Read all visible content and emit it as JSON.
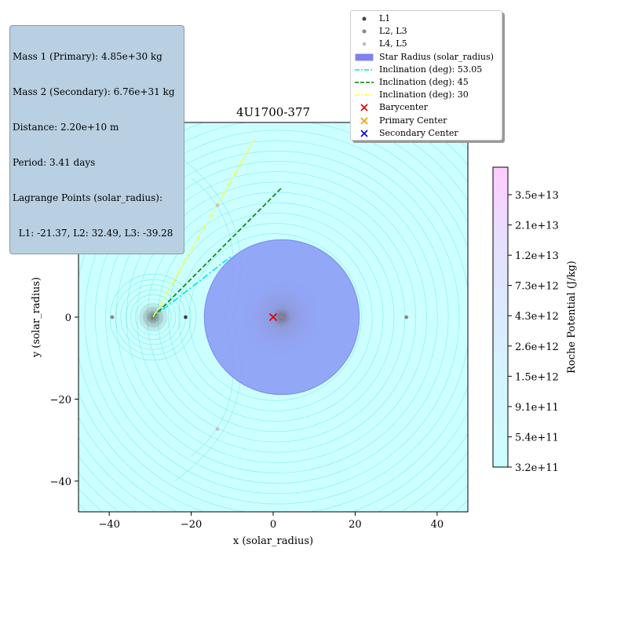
{
  "info": {
    "lines": [
      "Mass 1 (Primary): 4.85e+30 kg",
      "Mass 2 (Secondary): 6.76e+31 kg",
      "Distance: 2.20e+10 m",
      "Period: 3.41 days",
      "Lagrange Points (solar_radius):",
      "  L1: -21.37, L2: 32.49, L3: -39.28"
    ],
    "background": "#b8d0e2"
  },
  "legend": {
    "items": [
      {
        "label": "L1",
        "kind": "dot",
        "color": "#444444"
      },
      {
        "label": "L2, L3",
        "kind": "dot",
        "color": "#888888"
      },
      {
        "label": "L4, L5",
        "kind": "dot",
        "color": "#c4c4c4"
      },
      {
        "label": "Star Radius (solar_radius)",
        "kind": "patch",
        "color": "#8080f0"
      },
      {
        "label": "Inclination (deg): 53.05",
        "kind": "dashdot",
        "color": "#00e5e5"
      },
      {
        "label": "Inclination (deg): 45",
        "kind": "dashed",
        "color": "#008000"
      },
      {
        "label": "Inclination (deg): 30",
        "kind": "dashdot",
        "color": "#ffff33"
      },
      {
        "label": "Barycenter",
        "kind": "x",
        "color": "#e00000"
      },
      {
        "label": "Primary Center",
        "kind": "x",
        "color": "#f0a000"
      },
      {
        "label": "Secondary Center",
        "kind": "x",
        "color": "#0000e0"
      }
    ]
  },
  "chart_data": {
    "type": "contour",
    "title": "4U1700-377",
    "xlabel": "x (solar_radius)",
    "ylabel": "y (solar_radius)",
    "xlim": [
      -47.5,
      47.5
    ],
    "ylim": [
      -47.5,
      47.5
    ],
    "xticks": [
      -40,
      -20,
      0,
      20,
      40
    ],
    "yticks": [
      -40,
      -20,
      0,
      20,
      40
    ],
    "grid": false,
    "legend_position": "upper-right",
    "primary_center": [
      -29.3,
      0
    ],
    "secondary_center": [
      2.1,
      0
    ],
    "barycenter": [
      0,
      0
    ],
    "star_radius": 18.9,
    "lagrange_points": {
      "L1": [
        -21.37,
        0
      ],
      "L2": [
        32.49,
        0
      ],
      "L3": [
        -39.28,
        0
      ],
      "L4": [
        -13.6,
        27.3
      ],
      "L5": [
        -13.6,
        -27.3
      ]
    },
    "inclination_lines": [
      {
        "label": "Inclination (deg): 53.05",
        "angle_deg": 53.05,
        "end": [
          -10.0,
          15.0
        ],
        "color": "#00e5e5",
        "style": "dashdot"
      },
      {
        "label": "Inclination (deg): 45",
        "angle_deg": 45,
        "end": [
          2.0,
          31.5
        ],
        "color": "#008000",
        "style": "dashed"
      },
      {
        "label": "Inclination (deg): 30",
        "angle_deg": 30,
        "end": [
          -4.5,
          43.5
        ],
        "color": "#ffff33",
        "style": "dashdot"
      }
    ],
    "colorbar": {
      "label": "Roche Potential (J/kg)",
      "ticks": [
        "3.2e+11",
        "5.4e+11",
        "9.1e+11",
        "1.5e+12",
        "2.6e+12",
        "4.3e+12",
        "7.3e+12",
        "1.2e+13",
        "2.1e+13",
        "3.5e+13"
      ],
      "color_low": "#ccffff",
      "color_high": "#ffccff"
    }
  }
}
